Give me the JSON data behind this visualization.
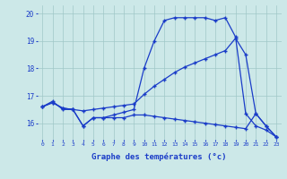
{
  "line_top_x": [
    0,
    1,
    2,
    3,
    4,
    5,
    6,
    7,
    8,
    9,
    10,
    11,
    12,
    13,
    14,
    15,
    16,
    17,
    18,
    19,
    20,
    21,
    22,
    23
  ],
  "line_top_y": [
    16.6,
    16.8,
    16.5,
    16.5,
    15.9,
    16.2,
    16.2,
    16.3,
    16.4,
    16.5,
    18.0,
    19.0,
    19.75,
    19.85,
    19.85,
    19.85,
    19.85,
    19.75,
    19.85,
    19.15,
    16.35,
    15.9,
    15.75,
    15.5
  ],
  "line_mid_x": [
    0,
    1,
    2,
    3,
    4,
    5,
    6,
    7,
    8,
    9,
    10,
    11,
    12,
    13,
    14,
    15,
    16,
    17,
    18,
    19,
    20,
    21,
    22,
    23
  ],
  "line_mid_y": [
    16.6,
    16.75,
    16.55,
    16.5,
    16.45,
    16.5,
    16.55,
    16.6,
    16.65,
    16.7,
    17.05,
    17.35,
    17.6,
    17.85,
    18.05,
    18.2,
    18.35,
    18.5,
    18.65,
    19.1,
    18.5,
    16.35,
    15.9,
    15.5
  ],
  "line_bot_x": [
    0,
    1,
    2,
    3,
    4,
    5,
    6,
    7,
    8,
    9,
    10,
    11,
    12,
    13,
    14,
    15,
    16,
    17,
    18,
    19,
    20,
    21,
    22,
    23
  ],
  "line_bot_y": [
    16.6,
    16.75,
    16.55,
    16.5,
    15.9,
    16.2,
    16.2,
    16.2,
    16.2,
    16.3,
    16.3,
    16.25,
    16.2,
    16.15,
    16.1,
    16.05,
    16.0,
    15.95,
    15.9,
    15.85,
    15.8,
    16.35,
    15.9,
    15.5
  ],
  "bg_color": "#cce8e8",
  "line_color": "#1a3cc8",
  "xlabel": "Graphe des températures (°c)",
  "ylim": [
    15.4,
    20.3
  ],
  "xlim": [
    -0.5,
    23.5
  ],
  "yticks": [
    16,
    17,
    18,
    19,
    20
  ],
  "xticks": [
    0,
    1,
    2,
    3,
    4,
    5,
    6,
    7,
    8,
    9,
    10,
    11,
    12,
    13,
    14,
    15,
    16,
    17,
    18,
    19,
    20,
    21,
    22,
    23
  ],
  "grid_color": "#a0c8c8",
  "marker": "+",
  "markersize": 3,
  "linewidth": 0.9
}
